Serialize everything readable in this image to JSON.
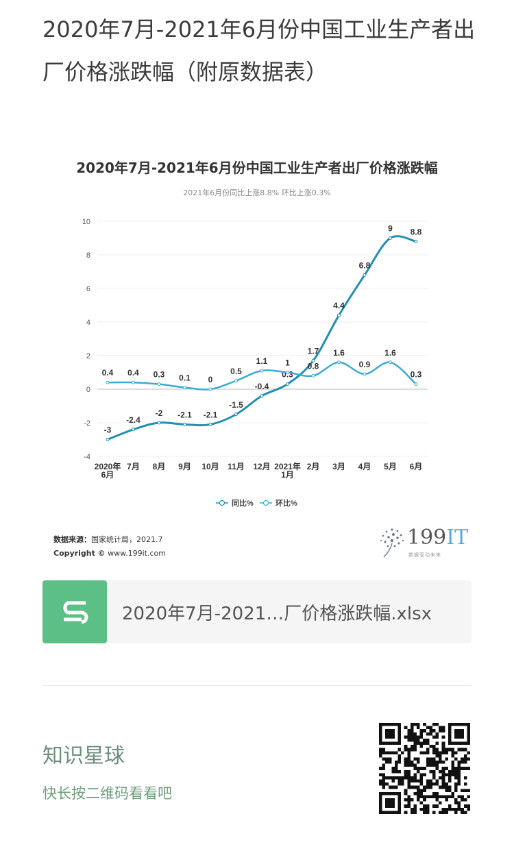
{
  "post": {
    "title": "2020年7月-2021年6月份中国工业生产者出厂价格涨跌幅（附原数据表）"
  },
  "chart_data": {
    "type": "line",
    "title": "2020年7月-2021年6月份中国工业生产者出厂价格涨跌幅",
    "subtitle": "2021年6月份同比上涨8.8% 环比上涨0.3%",
    "categories": [
      [
        "2020年",
        "6月"
      ],
      [
        "7月"
      ],
      [
        "8月"
      ],
      [
        "9月"
      ],
      [
        "10月"
      ],
      [
        "11月"
      ],
      [
        "12月"
      ],
      [
        "2021年",
        "1月"
      ],
      [
        "2月"
      ],
      [
        "3月"
      ],
      [
        "4月"
      ],
      [
        "5月"
      ],
      [
        "6月"
      ]
    ],
    "ylim": [
      -4,
      10
    ],
    "yticks": [
      -4,
      -2,
      0,
      2,
      4,
      6,
      8,
      10
    ],
    "grid": true,
    "legend_position": "bottom",
    "series": [
      {
        "name": "同比%",
        "color": "#1f8fb3",
        "values": [
          -3,
          -2.4,
          -2,
          -2.1,
          -2.1,
          -1.5,
          -0.4,
          0.3,
          1.7,
          4.4,
          6.8,
          9,
          8.8
        ],
        "labels": [
          "-3",
          "-2.4",
          "-2",
          "-2.1",
          "-2.1",
          "-1.5",
          "-0.4",
          "0.3",
          "1.7",
          "4.4",
          "6.8",
          "9",
          "8.8"
        ]
      },
      {
        "name": "环比%",
        "color": "#3aabd2",
        "values": [
          0.4,
          0.4,
          0.3,
          0.1,
          0,
          0.5,
          1.1,
          1,
          0.8,
          1.6,
          0.9,
          1.6,
          0.3
        ],
        "labels": [
          "0.4",
          "0.4",
          "0.3",
          "0.1",
          "0",
          "0.5",
          "1.1",
          "1",
          "0.8",
          "1.6",
          "0.9",
          "1.6",
          "0.3"
        ]
      }
    ]
  },
  "source": {
    "label": "数据来源：",
    "text": "国家统计局，2021.7",
    "copyright_label": "Copyright ©",
    "copyright_text": "www.199it.com"
  },
  "brand": {
    "name_digits": "199",
    "name_letters": "IT",
    "tagline": "数据驱动未来"
  },
  "attachment": {
    "icon": "spreadsheet-icon",
    "filename": "2020年7月-2021…厂价格涨跌幅.xlsx",
    "icon_color": "#5cbf85"
  },
  "footer": {
    "title": "知识星球",
    "subtitle": "快长按二维码看看吧"
  }
}
